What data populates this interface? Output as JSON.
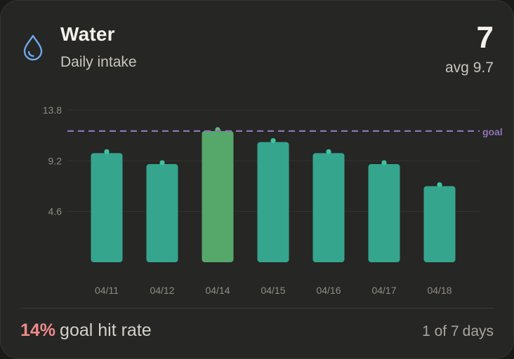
{
  "header": {
    "icon": "water-drop-icon",
    "title": "Water",
    "subtitle": "Daily intake",
    "value": "7",
    "avg_label": "avg",
    "avg_value": "9.7"
  },
  "colors": {
    "bar": "#35a58e",
    "bar_highlight": "#55a86a",
    "goal_line": "#8f73b7",
    "accent_red": "#f08a8a",
    "icon_blue": "#6fa8e8"
  },
  "chart_data": {
    "type": "bar",
    "categories": [
      "04/11",
      "04/12",
      "04/14",
      "04/15",
      "04/16",
      "04/17",
      "04/18"
    ],
    "values": [
      9.9,
      8.9,
      11.9,
      10.9,
      9.9,
      8.9,
      6.9
    ],
    "highlight_index": 2,
    "goal": 11.9,
    "goal_label": "goal",
    "yticks": [
      4.6,
      9.2,
      13.8
    ],
    "ytick_labels": [
      "4.6",
      "9.2",
      "13.8"
    ],
    "ylim": [
      0,
      13.8
    ],
    "grid": true
  },
  "footer": {
    "hit_rate_pct": "14%",
    "hit_rate_label": "goal hit rate",
    "days_count": "1 of 7",
    "days_label": "days"
  }
}
